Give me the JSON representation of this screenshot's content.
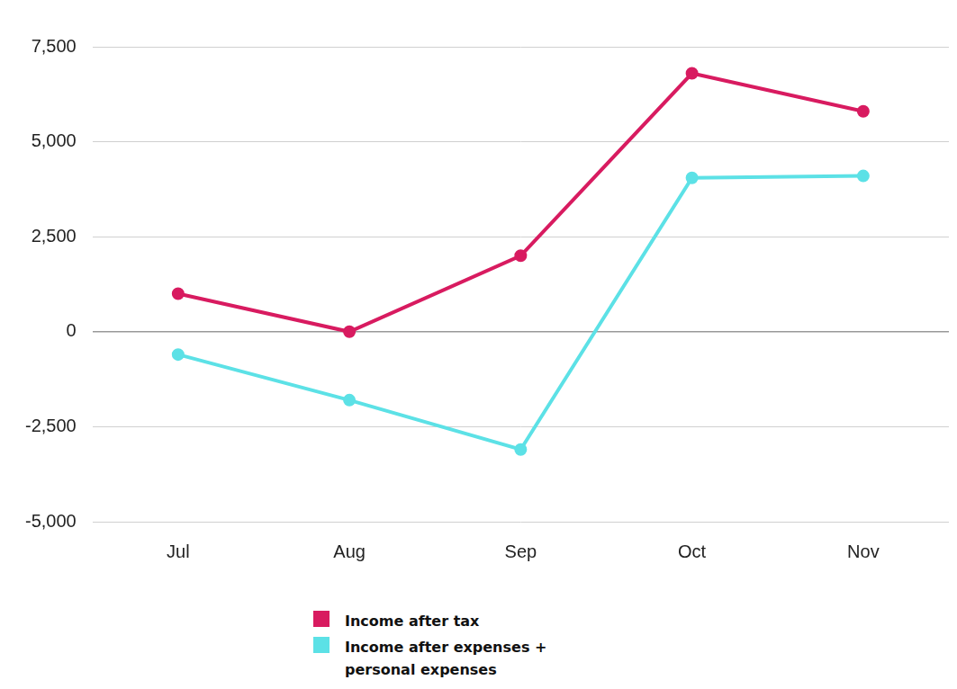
{
  "chart_data": {
    "type": "line",
    "categories": [
      "Jul",
      "Aug",
      "Sep",
      "Oct",
      "Nov"
    ],
    "series": [
      {
        "name": "Income after tax",
        "color": "#d81b60",
        "values": [
          1000,
          0,
          2000,
          6800,
          5800
        ]
      },
      {
        "name": "Income after expenses + personal expenses",
        "color": "#5ce1e6",
        "values": [
          -600,
          -1800,
          -3100,
          4050,
          4100
        ]
      }
    ],
    "ylim": [
      -5000,
      7500
    ],
    "yticks": [
      {
        "value": -5000,
        "label": "-5,000"
      },
      {
        "value": -2500,
        "label": "-2,500"
      },
      0,
      {
        "value": 2500,
        "label": "2,500"
      },
      {
        "value": 5000,
        "label": "5,000"
      },
      {
        "value": 7500,
        "label": "7,500"
      }
    ],
    "grid": true,
    "legend": "bottom",
    "marker": "circle"
  }
}
